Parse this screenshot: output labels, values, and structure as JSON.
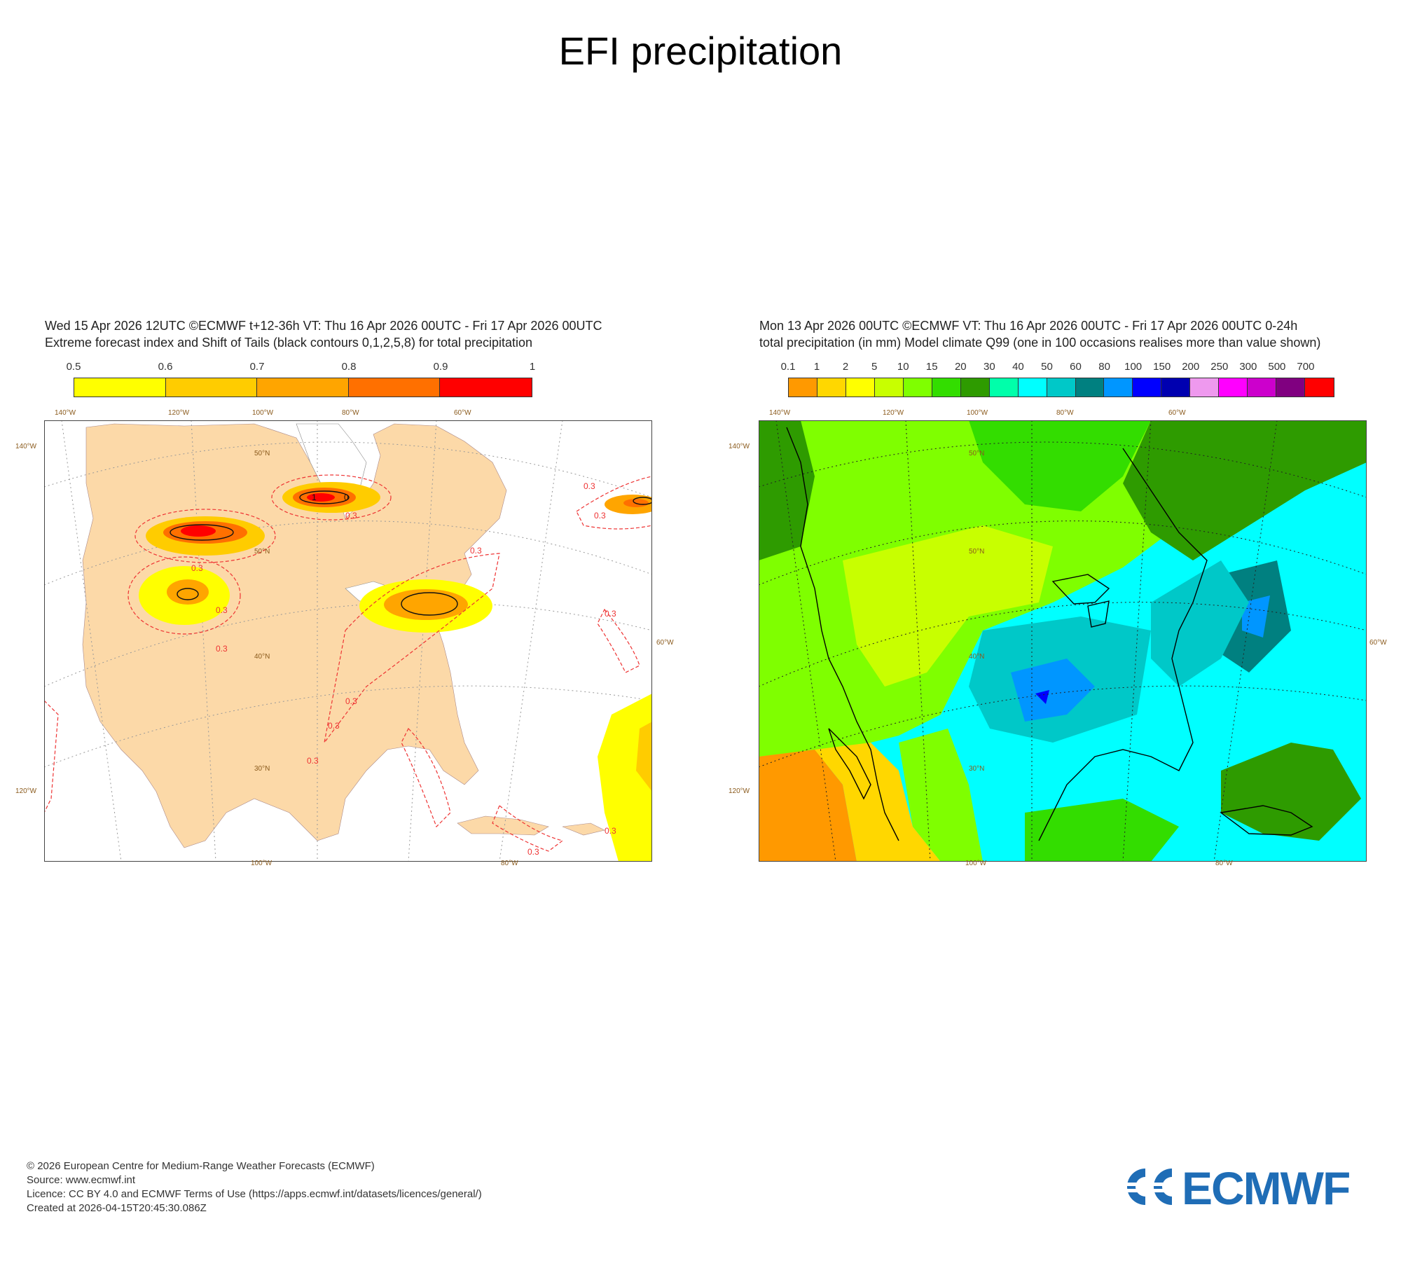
{
  "page": {
    "title": "EFI precipitation"
  },
  "left_panel": {
    "caption_line1": "Wed 15 Apr 2026 12UTC ©ECMWF t+12-36h  VT: Thu 16 Apr 2026 00UTC - Fri 17 Apr 2026 00UTC",
    "caption_line2": "Extreme forecast index and Shift of Tails (black contours 0,1,2,5,8) for total precipitation",
    "colorbar": {
      "labels": [
        "0.5",
        "0.6",
        "0.7",
        "0.8",
        "0.9",
        "1"
      ],
      "colors": [
        "#ffff00",
        "#ffcc00",
        "#ffa500",
        "#ff7000",
        "#ff0000"
      ]
    },
    "map": {
      "lon_top": [
        "140°W",
        "120°W",
        "100°W",
        "80°W",
        "60°W"
      ],
      "lat_labels": [
        "50°N",
        "50°N",
        "40°N",
        "30°N"
      ],
      "side_labels": {
        "left_top": "140°W",
        "left_bottom": "120°W",
        "right": "60°W"
      },
      "lon_bottom": [
        "100°W",
        "80°W"
      ],
      "contour_labels": [
        "0.3",
        "0.3",
        "0.3",
        "0.3",
        "0.3",
        "0.3",
        "0.3",
        "0.3",
        "0.3",
        "0.3",
        "0.3",
        "0.3",
        "0.3"
      ],
      "sot_labels": [
        "1",
        "0"
      ],
      "land_color": "#fcd9a8",
      "ocean_color": "#ffffff"
    }
  },
  "right_panel": {
    "caption_line1": "Mon 13 Apr 2026 00UTC ©ECMWF VT: Thu 16 Apr 2026 00UTC - Fri 17 Apr 2026 00UTC   0-24h",
    "caption_line2": "total precipitation (in mm)  Model climate Q99 (one in 100 occasions realises more than value shown)",
    "colorbar": {
      "labels": [
        "0.1",
        "1",
        "2",
        "5",
        "10",
        "15",
        "20",
        "30",
        "40",
        "50",
        "60",
        "80",
        "100",
        "150",
        "200",
        "250",
        "300",
        "500",
        "700"
      ],
      "colors": [
        "#ff9900",
        "#ffd700",
        "#ffff00",
        "#c8ff00",
        "#7fff00",
        "#33dd00",
        "#2e9b00",
        "#00ffaa",
        "#00ffff",
        "#00c8c8",
        "#008080",
        "#0096ff",
        "#0000ff",
        "#0000b0",
        "#ee99ee",
        "#ff00ff",
        "#cc00cc",
        "#800080",
        "#ff0000"
      ]
    },
    "map": {
      "lon_top": [
        "140°W",
        "120°W",
        "100°W",
        "80°W",
        "60°W"
      ],
      "lat_labels": [
        "50°N",
        "50°N",
        "40°N",
        "30°N"
      ],
      "side_labels": {
        "left_top": "140°W",
        "left_bottom": "120°W",
        "right": "60°W"
      },
      "lon_bottom": [
        "100°W",
        "80°W"
      ]
    }
  },
  "footer": {
    "line1": "© 2026 European Centre for Medium-Range Weather Forecasts (ECMWF)",
    "line2": "Source: www.ecmwf.int",
    "line3": "Licence: CC BY 4.0 and ECMWF Terms of Use (https://apps.ecmwf.int/datasets/licences/general/)",
    "line4": "Created at 2026-04-15T20:45:30.086Z"
  },
  "logo": {
    "text": "ECMWF",
    "color": "#1f6db6"
  }
}
